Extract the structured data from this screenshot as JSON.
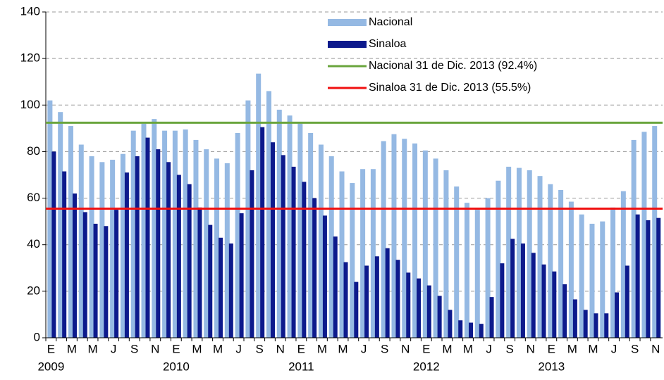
{
  "chart_data": {
    "type": "bar",
    "categories": [
      "E",
      null,
      "M",
      null,
      "M",
      null,
      "J",
      null,
      "S",
      null,
      "N",
      null,
      "E",
      null,
      "M",
      null,
      "M",
      null,
      "J",
      null,
      "S",
      null,
      "N",
      null,
      "E",
      null,
      "M",
      null,
      "M",
      null,
      "J",
      null,
      "S",
      null,
      "N",
      null,
      "E",
      null,
      "M",
      null,
      "M",
      null,
      "J",
      null,
      "S",
      null,
      "N",
      null,
      "E",
      null,
      "M",
      null,
      "M",
      null,
      "J",
      null,
      "S",
      null,
      "N"
    ],
    "years": [
      "2009",
      "2010",
      "2011",
      "2012",
      "2013"
    ],
    "series": [
      {
        "name": "Nacional",
        "color": "#95b9e3",
        "values": [
          102,
          97,
          91,
          83,
          78,
          75.5,
          76.5,
          79,
          89,
          92,
          94,
          89,
          89,
          89.5,
          85,
          81,
          77,
          75,
          88,
          102,
          113.5,
          106,
          98,
          95.5,
          92,
          88,
          83,
          78,
          71.5,
          66.5,
          72.5,
          72.5,
          84.5,
          87.5,
          85.5,
          83.5,
          80.5,
          77,
          72,
          65,
          58,
          55,
          60,
          67.5,
          73.5,
          73,
          72,
          69.5,
          66,
          63.5,
          58.5,
          53,
          49,
          50,
          56,
          63,
          85,
          88.5,
          91
        ]
      },
      {
        "name": "Sinaloa",
        "color": "#0d1a8c",
        "values": [
          80,
          71.5,
          62,
          54,
          49,
          48,
          55,
          71,
          78,
          86,
          81,
          75.5,
          70,
          66,
          56,
          48.5,
          43,
          40.5,
          53.5,
          72,
          90.5,
          84,
          78.5,
          73.5,
          67,
          60,
          52.5,
          43.5,
          32.5,
          24,
          31,
          35,
          38.5,
          33.5,
          28,
          25.5,
          22.5,
          18,
          12,
          7.5,
          6.5,
          6,
          17.5,
          32,
          42.5,
          40.5,
          36.5,
          31.5,
          28.5,
          23,
          16.5,
          12,
          10.5,
          10.5,
          19.5,
          31,
          53,
          50.5,
          51.5
        ]
      }
    ],
    "reference_lines": [
      {
        "name": "Nacional 31 de Dic. 2013 (92.4%)",
        "color": "#6aa53d",
        "value": 92.4
      },
      {
        "name": "Sinaloa 31 de Dic. 2013 (55.5%)",
        "color": "#f01010",
        "value": 55.5
      }
    ],
    "ylim": [
      0,
      140
    ],
    "yticks": [
      0,
      20,
      40,
      60,
      80,
      100,
      120,
      140
    ],
    "grid": true,
    "legend": "upper center"
  }
}
